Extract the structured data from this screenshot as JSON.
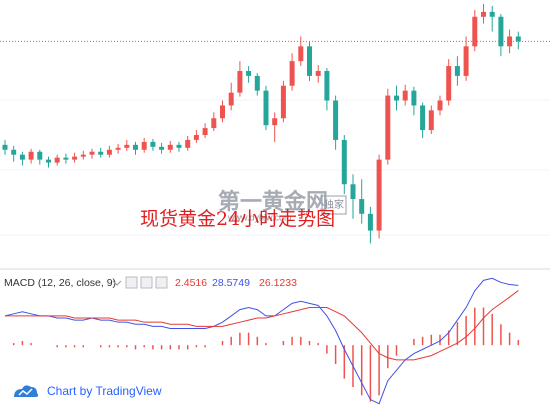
{
  "chart_data": [
    {
      "type": "candlestick",
      "up_color": "#ef5350",
      "down_color": "#26a69a",
      "ylim": [
        0,
        270
      ],
      "open": [
        125,
        120,
        115,
        110,
        118,
        110,
        107,
        112,
        110,
        113,
        115,
        118,
        115,
        120,
        122,
        125,
        120,
        128,
        123,
        120,
        125,
        122,
        130,
        135,
        142,
        152,
        165,
        178,
        200,
        195,
        180,
        145,
        152,
        185,
        210,
        225,
        195,
        200,
        170,
        130,
        85,
        70,
        55,
        38,
        110,
        175,
        170,
        180,
        165,
        140,
        160,
        170,
        205,
        195,
        225,
        255,
        260,
        255,
        225,
        235
      ],
      "high": [
        130,
        124,
        118,
        121,
        120,
        113,
        115,
        116,
        117,
        119,
        121,
        122,
        124,
        126,
        130,
        128,
        132,
        131,
        127,
        129,
        128,
        134,
        140,
        147,
        158,
        170,
        188,
        210,
        205,
        198,
        185,
        158,
        190,
        218,
        235,
        230,
        206,
        203,
        175,
        135,
        95,
        90,
        62,
        115,
        182,
        185,
        186,
        184,
        168,
        165,
        175,
        212,
        215,
        235,
        262,
        268,
        266,
        258,
        242,
        240
      ],
      "low": [
        115,
        108,
        104,
        106,
        105,
        102,
        104,
        106,
        107,
        110,
        111,
        112,
        112,
        116,
        119,
        115,
        117,
        119,
        116,
        117,
        118,
        119,
        127,
        132,
        139,
        148,
        160,
        174,
        188,
        175,
        140,
        128,
        148,
        180,
        205,
        190,
        188,
        160,
        120,
        75,
        50,
        45,
        25,
        30,
        105,
        160,
        165,
        155,
        132,
        136,
        155,
        165,
        185,
        190,
        220,
        248,
        240,
        215,
        218,
        222
      ],
      "close": [
        120,
        115,
        110,
        118,
        110,
        107,
        112,
        110,
        113,
        115,
        118,
        115,
        120,
        122,
        125,
        120,
        128,
        123,
        120,
        125,
        122,
        130,
        135,
        142,
        152,
        165,
        178,
        200,
        195,
        180,
        145,
        152,
        185,
        210,
        225,
        195,
        200,
        170,
        130,
        85,
        70,
        55,
        38,
        110,
        175,
        170,
        180,
        165,
        140,
        160,
        170,
        205,
        195,
        225,
        255,
        260,
        255,
        225,
        235,
        230
      ],
      "last_price_color": "#ef5350",
      "annotations": {
        "watermark": "第一黄金网",
        "badge": "独家",
        "site": "www.dyhjw.com",
        "caption": "现货黄金24小时走势图"
      }
    },
    {
      "type": "macd",
      "title": "MACD (12, 26, close, 9)",
      "ylim": [
        -31,
        35
      ],
      "series": [
        {
          "name": "histogram",
          "color": "#ef5350",
          "values": [
            0,
            1,
            2,
            1,
            0,
            0,
            -1,
            -1,
            -1,
            -1,
            0,
            -1,
            -1,
            -1,
            -1,
            -2,
            -1,
            -2,
            -2,
            -2,
            -2,
            -2,
            -1,
            -1,
            0,
            2,
            4,
            6,
            6,
            4,
            1,
            0,
            2,
            4,
            4,
            2,
            1,
            -4,
            -9,
            -16,
            -20,
            -24,
            -27,
            -24,
            -11,
            -5,
            0,
            3,
            4,
            5,
            5,
            7,
            11,
            14,
            18,
            18,
            15,
            10,
            6,
            2.4516
          ]
        },
        {
          "name": "macd",
          "color": "#3f51e8",
          "values": [
            14,
            15,
            16,
            15,
            14,
            14,
            13,
            13,
            12,
            12,
            13,
            12,
            12,
            11,
            11,
            10,
            10,
            9,
            9,
            8,
            8,
            8,
            8,
            8,
            9,
            11,
            14,
            17,
            18,
            17,
            14,
            14,
            17,
            20,
            21,
            20,
            19,
            14,
            7,
            -2,
            -10,
            -18,
            -26,
            -28,
            -17,
            -12,
            -7,
            -4,
            -2,
            0,
            2,
            6,
            12,
            18,
            26,
            31,
            32,
            30,
            29,
            28.5749
          ]
        },
        {
          "name": "signal",
          "color": "#e53935",
          "values": [
            14,
            14,
            14,
            14,
            14,
            14,
            14,
            14,
            13,
            13,
            13,
            13,
            13,
            12,
            12,
            12,
            11,
            11,
            11,
            10,
            10,
            10,
            9,
            9,
            9,
            9,
            10,
            11,
            12,
            13,
            13,
            14,
            15,
            16,
            17,
            18,
            18,
            18,
            16,
            14,
            10,
            6,
            1,
            -4,
            -6,
            -7,
            -7,
            -7,
            -6,
            -5,
            -3,
            -1,
            1,
            4,
            8,
            13,
            17,
            20,
            23,
            26.1233
          ]
        }
      ]
    }
  ],
  "footer": {
    "brand": "Chart by TradingView"
  }
}
